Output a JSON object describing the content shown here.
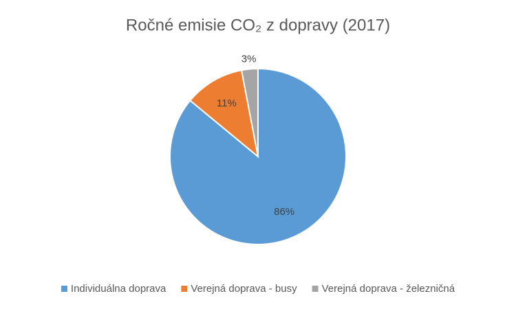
{
  "chart_data": {
    "type": "pie",
    "title": "Ročné emisie CO₂ z dopravy (2017)",
    "categories": [
      "Individuálna doprava",
      "Verejná doprava - busy",
      "Verejná doprava - železničná"
    ],
    "values": [
      86,
      11,
      3
    ],
    "value_labels": [
      "86%",
      "11%",
      "3%"
    ],
    "colors": [
      "#5b9bd5",
      "#ed7d31",
      "#a5a5a5"
    ],
    "legend": "bottom"
  }
}
